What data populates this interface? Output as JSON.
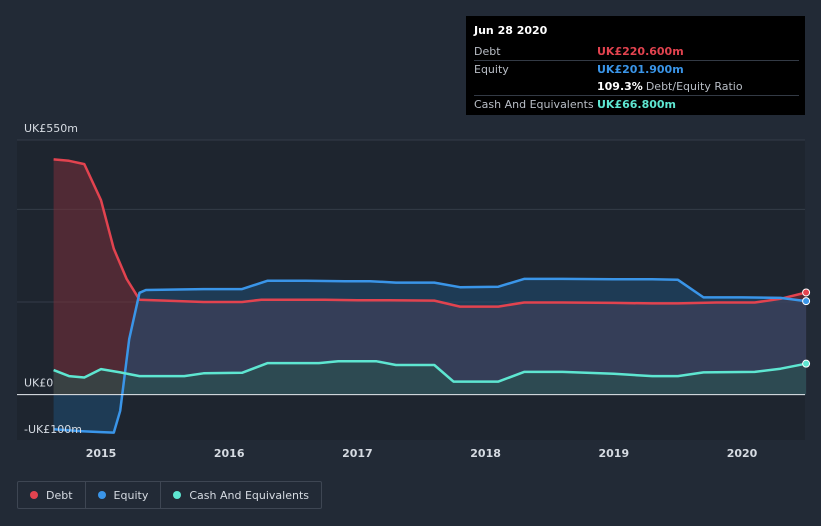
{
  "chart_data": {
    "type": "area",
    "currency_prefix": "UK£",
    "y_ticks": [
      {
        "value": 550,
        "label": "UK£550m"
      },
      {
        "value": 0,
        "label": "UK£0"
      },
      {
        "value": -100,
        "label": "-UK£100m"
      }
    ],
    "ylim": [
      -100,
      550
    ],
    "gridlines": [
      550,
      400,
      200,
      0
    ],
    "x_ticks": [
      2015,
      2016,
      2017,
      2018,
      2019,
      2020
    ],
    "xlim": [
      2014.63,
      2020.5
    ],
    "series": [
      {
        "name": "Debt",
        "color": "#e2434f",
        "fill": "#7a2f3b",
        "points": [
          [
            2014.63,
            508
          ],
          [
            2014.75,
            505
          ],
          [
            2014.87,
            498
          ],
          [
            2015.0,
            420
          ],
          [
            2015.1,
            315
          ],
          [
            2015.2,
            250
          ],
          [
            2015.3,
            205
          ],
          [
            2015.5,
            203
          ],
          [
            2015.8,
            200
          ],
          [
            2016.1,
            200
          ],
          [
            2016.25,
            205
          ],
          [
            2016.5,
            205
          ],
          [
            2016.75,
            205
          ],
          [
            2017.0,
            204
          ],
          [
            2017.25,
            204
          ],
          [
            2017.6,
            203
          ],
          [
            2017.8,
            190
          ],
          [
            2018.1,
            190
          ],
          [
            2018.3,
            199
          ],
          [
            2018.6,
            199
          ],
          [
            2019.0,
            198
          ],
          [
            2019.3,
            197
          ],
          [
            2019.5,
            197
          ],
          [
            2019.8,
            199
          ],
          [
            2020.1,
            199
          ],
          [
            2020.3,
            207
          ],
          [
            2020.5,
            220.6
          ]
        ]
      },
      {
        "name": "Equity",
        "color": "#3a95e8",
        "fill": "#1f4f75",
        "points": [
          [
            2014.63,
            -75
          ],
          [
            2014.85,
            -79
          ],
          [
            2015.0,
            -81
          ],
          [
            2015.1,
            -82
          ],
          [
            2015.15,
            -35
          ],
          [
            2015.22,
            120
          ],
          [
            2015.3,
            220
          ],
          [
            2015.35,
            226
          ],
          [
            2015.6,
            227
          ],
          [
            2015.8,
            228
          ],
          [
            2016.1,
            228
          ],
          [
            2016.3,
            246
          ],
          [
            2016.6,
            246
          ],
          [
            2016.9,
            245
          ],
          [
            2017.1,
            245
          ],
          [
            2017.3,
            242
          ],
          [
            2017.6,
            242
          ],
          [
            2017.8,
            232
          ],
          [
            2018.1,
            233
          ],
          [
            2018.3,
            250
          ],
          [
            2018.6,
            250
          ],
          [
            2019.0,
            249
          ],
          [
            2019.3,
            249
          ],
          [
            2019.5,
            248
          ],
          [
            2019.7,
            210
          ],
          [
            2020.0,
            210
          ],
          [
            2020.3,
            209
          ],
          [
            2020.5,
            201.9
          ]
        ]
      },
      {
        "name": "Cash And Equivalents",
        "color": "#5ee6d1",
        "fill": "#27534f",
        "points": [
          [
            2014.63,
            53
          ],
          [
            2014.75,
            40
          ],
          [
            2014.87,
            37
          ],
          [
            2015.0,
            55
          ],
          [
            2015.15,
            48
          ],
          [
            2015.3,
            40
          ],
          [
            2015.45,
            40
          ],
          [
            2015.65,
            40
          ],
          [
            2015.8,
            46
          ],
          [
            2016.1,
            47
          ],
          [
            2016.3,
            68
          ],
          [
            2016.7,
            68
          ],
          [
            2016.85,
            72
          ],
          [
            2017.15,
            72
          ],
          [
            2017.3,
            64
          ],
          [
            2017.6,
            64
          ],
          [
            2017.75,
            28
          ],
          [
            2018.1,
            28
          ],
          [
            2018.3,
            49
          ],
          [
            2018.6,
            49
          ],
          [
            2019.0,
            45
          ],
          [
            2019.3,
            40
          ],
          [
            2019.5,
            40
          ],
          [
            2019.7,
            48
          ],
          [
            2020.1,
            49
          ],
          [
            2020.3,
            56
          ],
          [
            2020.5,
            66.8
          ]
        ]
      }
    ]
  },
  "tooltip": {
    "date": "Jun 28 2020",
    "debt_label": "Debt",
    "debt_value": "UK£220.600m",
    "debt_color": "#e2434f",
    "equity_label": "Equity",
    "equity_value": "UK£201.900m",
    "equity_color": "#3a95e8",
    "ratio_value": "109.3%",
    "ratio_label": "Debt/Equity Ratio",
    "cash_label": "Cash And Equivalents",
    "cash_value": "UK£66.800m",
    "cash_color": "#5ee6d1"
  },
  "legend": [
    {
      "label": "Debt",
      "color": "#e2434f"
    },
    {
      "label": "Equity",
      "color": "#3a95e8"
    },
    {
      "label": "Cash And Equivalents",
      "color": "#5ee6d1"
    }
  ]
}
